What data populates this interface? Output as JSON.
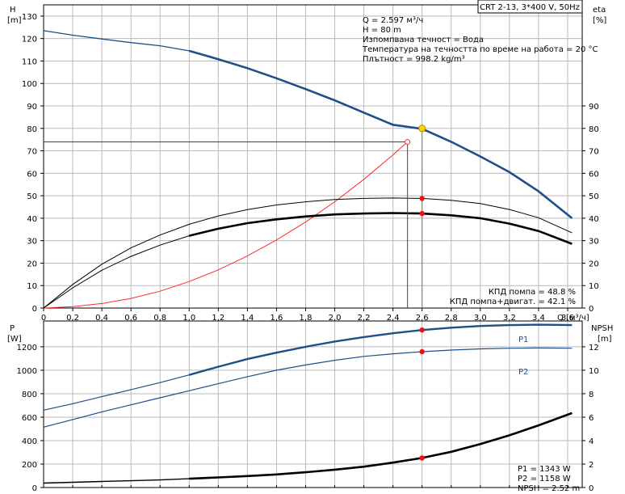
{
  "chart_data": [
    {
      "type": "line",
      "title": "CRT 2-13, 3*400 V, 50Hz",
      "xlabel": "Q [м³/ч]",
      "ylabel": "H",
      "ylabel_unit": "[m]",
      "y2label": "eta",
      "y2label_unit": "[%]",
      "xlim": [
        0,
        3.7
      ],
      "ylim": [
        0,
        135
      ],
      "y2lim": [
        0,
        135
      ],
      "x_ticks": [
        "0",
        "0,2",
        "0,4",
        "0,6",
        "0,8",
        "1,0",
        "1,2",
        "1,4",
        "1,6",
        "1,8",
        "2,0",
        "2,2",
        "2,4",
        "2,6",
        "2,8",
        "3,0",
        "3,2",
        "3,4",
        "3,6"
      ],
      "y_ticks": [
        "0",
        "10",
        "20",
        "30",
        "40",
        "50",
        "60",
        "70",
        "80",
        "90",
        "100",
        "110",
        "120",
        "130"
      ],
      "y2_ticks": [
        "0",
        "10",
        "20",
        "30",
        "40",
        "50",
        "60",
        "70",
        "80",
        "90"
      ],
      "grid": true,
      "colors": {
        "head": "#1f4f88",
        "system": "#ff2a2a",
        "efficiency": "#000000",
        "marker": "#ee1111",
        "duty": "#ffd400"
      },
      "info": [
        "Q = 2.597 м³/ч",
        "H = 80 m",
        "Изпомпвана течност = Вода",
        "Температура на течността по време на работа = 20 °C",
        "Плътност = 998.2 kg/m³"
      ],
      "efficiency_text": [
        "КПД помпа = 48.8 %",
        "КПД помпа+двигат. = 42.1 %"
      ],
      "series": [
        {
          "key": "head",
          "axis": "left",
          "x": [
            0,
            0.2,
            0.4,
            0.6,
            0.8,
            1.0,
            1.2,
            1.4,
            1.6,
            1.8,
            2.0,
            2.2,
            2.4,
            2.6,
            2.8,
            3.0,
            3.2,
            3.4,
            3.63
          ],
          "values": [
            123.5,
            121.5,
            119.8,
            118.2,
            116.8,
            114.5,
            110.8,
            106.8,
            102.3,
            97.5,
            92.5,
            87.0,
            81.6,
            79.8,
            74.0,
            67.5,
            60.5,
            52.0,
            40.0
          ],
          "bold_from": 1.0
        },
        {
          "key": "system",
          "axis": "left",
          "x": [
            0,
            0.2,
            0.4,
            0.6,
            0.8,
            1.0,
            1.2,
            1.4,
            1.6,
            1.8,
            2.0,
            2.2,
            2.4,
            2.5
          ],
          "values": [
            0,
            0.6,
            2.0,
            4.3,
            7.5,
            11.8,
            17.0,
            23.2,
            30.3,
            38.3,
            47.3,
            57.3,
            68.2,
            74.0
          ]
        },
        {
          "key": "eta_pump",
          "axis": "right",
          "x": [
            0,
            0.2,
            0.4,
            0.6,
            0.8,
            1.0,
            1.2,
            1.4,
            1.6,
            1.8,
            2.0,
            2.2,
            2.4,
            2.6,
            2.8,
            3.0,
            3.2,
            3.4,
            3.63
          ],
          "values": [
            0,
            10.5,
            19.5,
            26.8,
            32.5,
            37.3,
            41.0,
            43.8,
            45.9,
            47.3,
            48.3,
            48.8,
            49.0,
            48.8,
            48.0,
            46.5,
            43.9,
            40.2,
            33.5
          ]
        },
        {
          "key": "eta_total",
          "axis": "right",
          "x": [
            0,
            0.2,
            0.4,
            0.6,
            0.8,
            1.0,
            1.2,
            1.4,
            1.6,
            1.8,
            2.0,
            2.2,
            2.4,
            2.6,
            2.8,
            3.0,
            3.2,
            3.4,
            3.63
          ],
          "values": [
            0,
            9.0,
            16.8,
            23.0,
            28.0,
            32.2,
            35.3,
            37.8,
            39.5,
            40.8,
            41.7,
            42.1,
            42.3,
            42.1,
            41.3,
            40.0,
            37.6,
            34.3,
            28.6
          ],
          "bold_from": 1.0
        }
      ],
      "points": [
        {
          "key": "duty",
          "x": 2.6,
          "y": 80,
          "axis": "left"
        },
        {
          "key": "eta_pump_point",
          "x": 2.6,
          "y": 48.8,
          "axis": "right"
        },
        {
          "key": "eta_total_point",
          "x": 2.6,
          "y": 42.1,
          "axis": "right"
        }
      ],
      "system_end": {
        "x": 2.5,
        "y": 74.0
      }
    },
    {
      "type": "line",
      "ylabel": "P",
      "ylabel_unit": "[W]",
      "y2label": "NPSH",
      "y2label_unit": "[m]",
      "xlim": [
        0,
        3.7
      ],
      "ylim": [
        0,
        1420
      ],
      "y2lim": [
        0,
        14.2
      ],
      "y_ticks": [
        "0",
        "200",
        "400",
        "600",
        "800",
        "1000",
        "1200"
      ],
      "y2_ticks": [
        "0",
        "2",
        "4",
        "6",
        "8",
        "10",
        "12"
      ],
      "grid": true,
      "series": [
        {
          "key": "P1",
          "name": "P1",
          "axis": "left",
          "x": [
            0,
            0.2,
            0.4,
            0.6,
            0.8,
            1.0,
            1.2,
            1.4,
            1.6,
            1.8,
            2.0,
            2.2,
            2.4,
            2.6,
            2.8,
            3.0,
            3.2,
            3.4,
            3.63
          ],
          "values": [
            660,
            715,
            775,
            835,
            895,
            960,
            1030,
            1095,
            1150,
            1200,
            1245,
            1283,
            1315,
            1343,
            1363,
            1377,
            1385,
            1388,
            1385
          ],
          "bold_from": 1.0
        },
        {
          "key": "P2",
          "name": "P2",
          "axis": "left",
          "x": [
            0,
            0.2,
            0.4,
            0.6,
            0.8,
            1.0,
            1.2,
            1.4,
            1.6,
            1.8,
            2.0,
            2.2,
            2.4,
            2.6,
            2.8,
            3.0,
            3.2,
            3.4,
            3.63
          ],
          "values": [
            515,
            580,
            645,
            705,
            765,
            825,
            885,
            945,
            1000,
            1045,
            1085,
            1118,
            1140,
            1158,
            1172,
            1182,
            1188,
            1190,
            1188
          ]
        },
        {
          "key": "NPSH",
          "axis": "right",
          "x": [
            0,
            0.2,
            0.4,
            0.6,
            0.8,
            1.0,
            1.2,
            1.4,
            1.6,
            1.8,
            2.0,
            2.2,
            2.4,
            2.6,
            2.8,
            3.0,
            3.2,
            3.4,
            3.63
          ],
          "values": [
            0.38,
            0.45,
            0.52,
            0.58,
            0.65,
            0.75,
            0.86,
            0.98,
            1.12,
            1.3,
            1.52,
            1.78,
            2.12,
            2.52,
            3.05,
            3.7,
            4.45,
            5.3,
            6.35
          ],
          "bold_from": 1.0
        }
      ],
      "points": [
        {
          "key": "P1_point",
          "x": 2.6,
          "y": 1343,
          "axis": "left"
        },
        {
          "key": "P2_point",
          "x": 2.6,
          "y": 1158,
          "axis": "left"
        },
        {
          "key": "NPSH_point",
          "x": 2.6,
          "y": 2.52,
          "axis": "right"
        }
      ],
      "power_text": [
        "P1 = 1343 W",
        "P2 = 1158 W",
        "NPSH = 2.52 m"
      ]
    }
  ]
}
